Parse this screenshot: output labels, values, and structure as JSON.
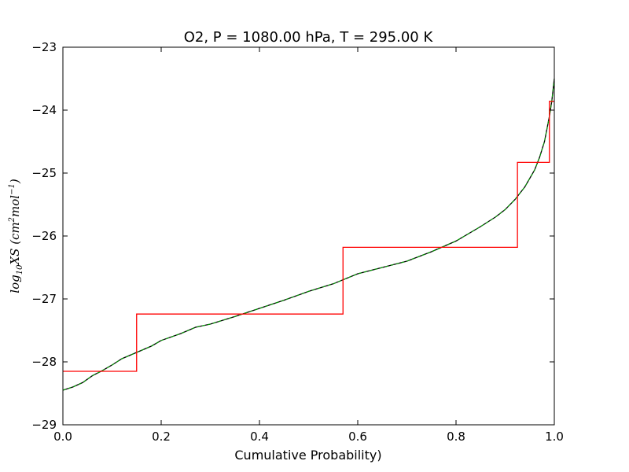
{
  "chart_data": {
    "type": "line",
    "title": "O2, P = 1080.00 hPa, T = 295.00 K",
    "xlabel": "Cumulative Probability)",
    "ylabel": {
      "prefix": "log",
      "sub": "10",
      "main": "XS (cm",
      "sup1": "2",
      "mid": "mol",
      "sup2": "−1",
      "suffix": ")"
    },
    "xlim": [
      0.0,
      1.0
    ],
    "ylim": [
      -29,
      -23
    ],
    "x_ticks": [
      "0.0",
      "0.2",
      "0.4",
      "0.6",
      "0.8",
      "1.0"
    ],
    "y_ticks": [
      "−29",
      "−28",
      "−27",
      "−26",
      "−25",
      "−24",
      "−23"
    ],
    "grid": false,
    "series": [
      {
        "color": "#000000",
        "style": "solid",
        "x": [
          0.0,
          0.02,
          0.04,
          0.06,
          0.08,
          0.1,
          0.12,
          0.15,
          0.18,
          0.2,
          0.24,
          0.27,
          0.3,
          0.35,
          0.4,
          0.45,
          0.5,
          0.55,
          0.6,
          0.65,
          0.7,
          0.75,
          0.8,
          0.85,
          0.88,
          0.9,
          0.92,
          0.94,
          0.96,
          0.97,
          0.98,
          0.99,
          0.995,
          1.0
        ],
        "y": [
          -28.45,
          -28.4,
          -28.33,
          -28.22,
          -28.14,
          -28.05,
          -27.95,
          -27.85,
          -27.75,
          -27.66,
          -27.55,
          -27.45,
          -27.4,
          -27.28,
          -27.15,
          -27.02,
          -26.88,
          -26.76,
          -26.6,
          -26.5,
          -26.4,
          -26.25,
          -26.08,
          -25.85,
          -25.7,
          -25.58,
          -25.42,
          -25.22,
          -24.95,
          -24.75,
          -24.5,
          -24.1,
          -23.85,
          -23.5
        ]
      },
      {
        "color": "#00aa00",
        "style": "dashed",
        "x": [
          0.0,
          0.02,
          0.04,
          0.06,
          0.08,
          0.1,
          0.12,
          0.15,
          0.18,
          0.2,
          0.24,
          0.27,
          0.3,
          0.35,
          0.4,
          0.45,
          0.5,
          0.55,
          0.6,
          0.65,
          0.7,
          0.75,
          0.8,
          0.85,
          0.88,
          0.9,
          0.92,
          0.94,
          0.96,
          0.97,
          0.98,
          0.99,
          0.995,
          1.0
        ],
        "y": [
          -28.45,
          -28.4,
          -28.33,
          -28.22,
          -28.14,
          -28.05,
          -27.95,
          -27.85,
          -27.75,
          -27.66,
          -27.55,
          -27.45,
          -27.4,
          -27.28,
          -27.15,
          -27.02,
          -26.88,
          -26.76,
          -26.6,
          -26.5,
          -26.4,
          -26.25,
          -26.08,
          -25.85,
          -25.7,
          -25.58,
          -25.42,
          -25.22,
          -24.95,
          -24.75,
          -24.5,
          -24.1,
          -23.85,
          -23.5
        ]
      },
      {
        "color": "#ff0000",
        "style": "step",
        "x": [
          0.0,
          0.15,
          0.15,
          0.57,
          0.57,
          0.925,
          0.925,
          0.99,
          0.99,
          1.0
        ],
        "y": [
          -28.15,
          -28.15,
          -27.24,
          -27.24,
          -26.18,
          -26.18,
          -24.83,
          -24.83,
          -23.86,
          -23.86
        ]
      }
    ]
  }
}
